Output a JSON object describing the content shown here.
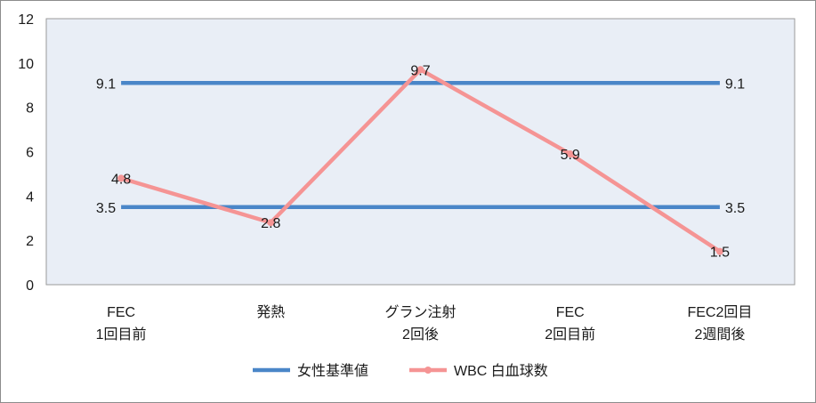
{
  "chart_data": {
    "type": "line",
    "categories": [
      [
        "FEC",
        "1回目前"
      ],
      [
        "発熱"
      ],
      [
        "グラン注射",
        "2回後"
      ],
      [
        "FEC",
        "2回目前"
      ],
      [
        "FEC2回目",
        "2週間後"
      ]
    ],
    "ylim": [
      0,
      12
    ],
    "yticks": [
      0,
      2,
      4,
      6,
      8,
      10,
      12
    ],
    "grid": false,
    "legend_position": "bottom",
    "series": [
      {
        "name": "女性基準値",
        "kind": "band",
        "color": "#4a86c8",
        "lines": [
          {
            "values": [
              9.1,
              9.1,
              9.1,
              9.1,
              9.1
            ],
            "labels": [
              "9.1",
              "",
              "",
              "",
              "9.1"
            ]
          },
          {
            "values": [
              3.5,
              3.5,
              3.5,
              3.5,
              3.5
            ],
            "labels": [
              "3.5",
              "",
              "",
              "",
              "3.5"
            ]
          }
        ]
      },
      {
        "name": "WBC 白血球数",
        "kind": "line-marker",
        "color": "#f59494",
        "values": [
          4.8,
          2.8,
          9.7,
          5.9,
          1.5
        ],
        "labels": [
          "4.8",
          "2.8",
          "9.7",
          "5.9",
          "1.5"
        ]
      }
    ]
  }
}
